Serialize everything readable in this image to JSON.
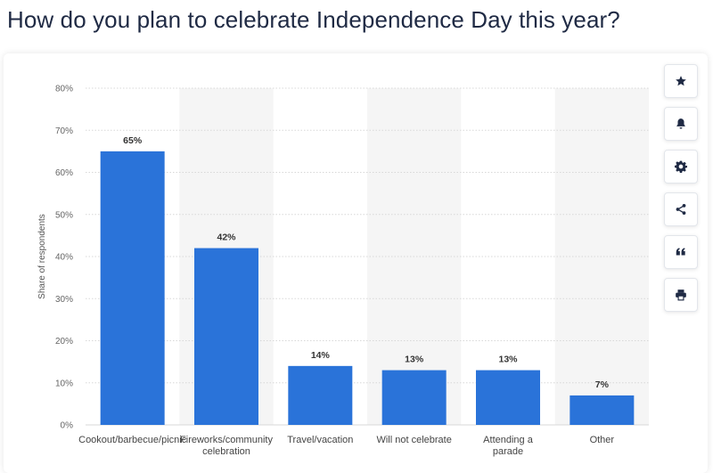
{
  "page": {
    "title": "How do you plan to celebrate Independence Day this year?"
  },
  "toolbar": {
    "buttons": [
      {
        "icon": "star-icon",
        "label": "favorite"
      },
      {
        "icon": "bell-icon",
        "label": "notifications"
      },
      {
        "icon": "gear-icon",
        "label": "settings"
      },
      {
        "icon": "share-icon",
        "label": "share"
      },
      {
        "icon": "quote-icon",
        "label": "cite"
      },
      {
        "icon": "print-icon",
        "label": "print"
      }
    ]
  },
  "colors": {
    "bar": "#2a73d9",
    "band": "#f5f5f5",
    "grid": "#d8d8d8"
  },
  "chart_data": {
    "type": "bar",
    "title": "",
    "xlabel": "",
    "ylabel": "Share of respondents",
    "categories": [
      [
        "Cookout/barbecue/picnic"
      ],
      [
        "Fireworks/community",
        "celebration"
      ],
      [
        "Travel/vacation"
      ],
      [
        "Will not celebrate"
      ],
      [
        "Attending a",
        "parade"
      ],
      [
        "Other"
      ]
    ],
    "values": [
      65,
      42,
      14,
      13,
      13,
      7
    ],
    "value_labels": [
      "65%",
      "42%",
      "14%",
      "13%",
      "13%",
      "7%"
    ],
    "ylim": [
      0,
      80
    ],
    "yticks": [
      0,
      10,
      20,
      30,
      40,
      50,
      60,
      70,
      80
    ],
    "ytick_labels": [
      "0%",
      "10%",
      "20%",
      "30%",
      "40%",
      "50%",
      "60%",
      "70%",
      "80%"
    ],
    "grid": true,
    "legend": "none"
  }
}
